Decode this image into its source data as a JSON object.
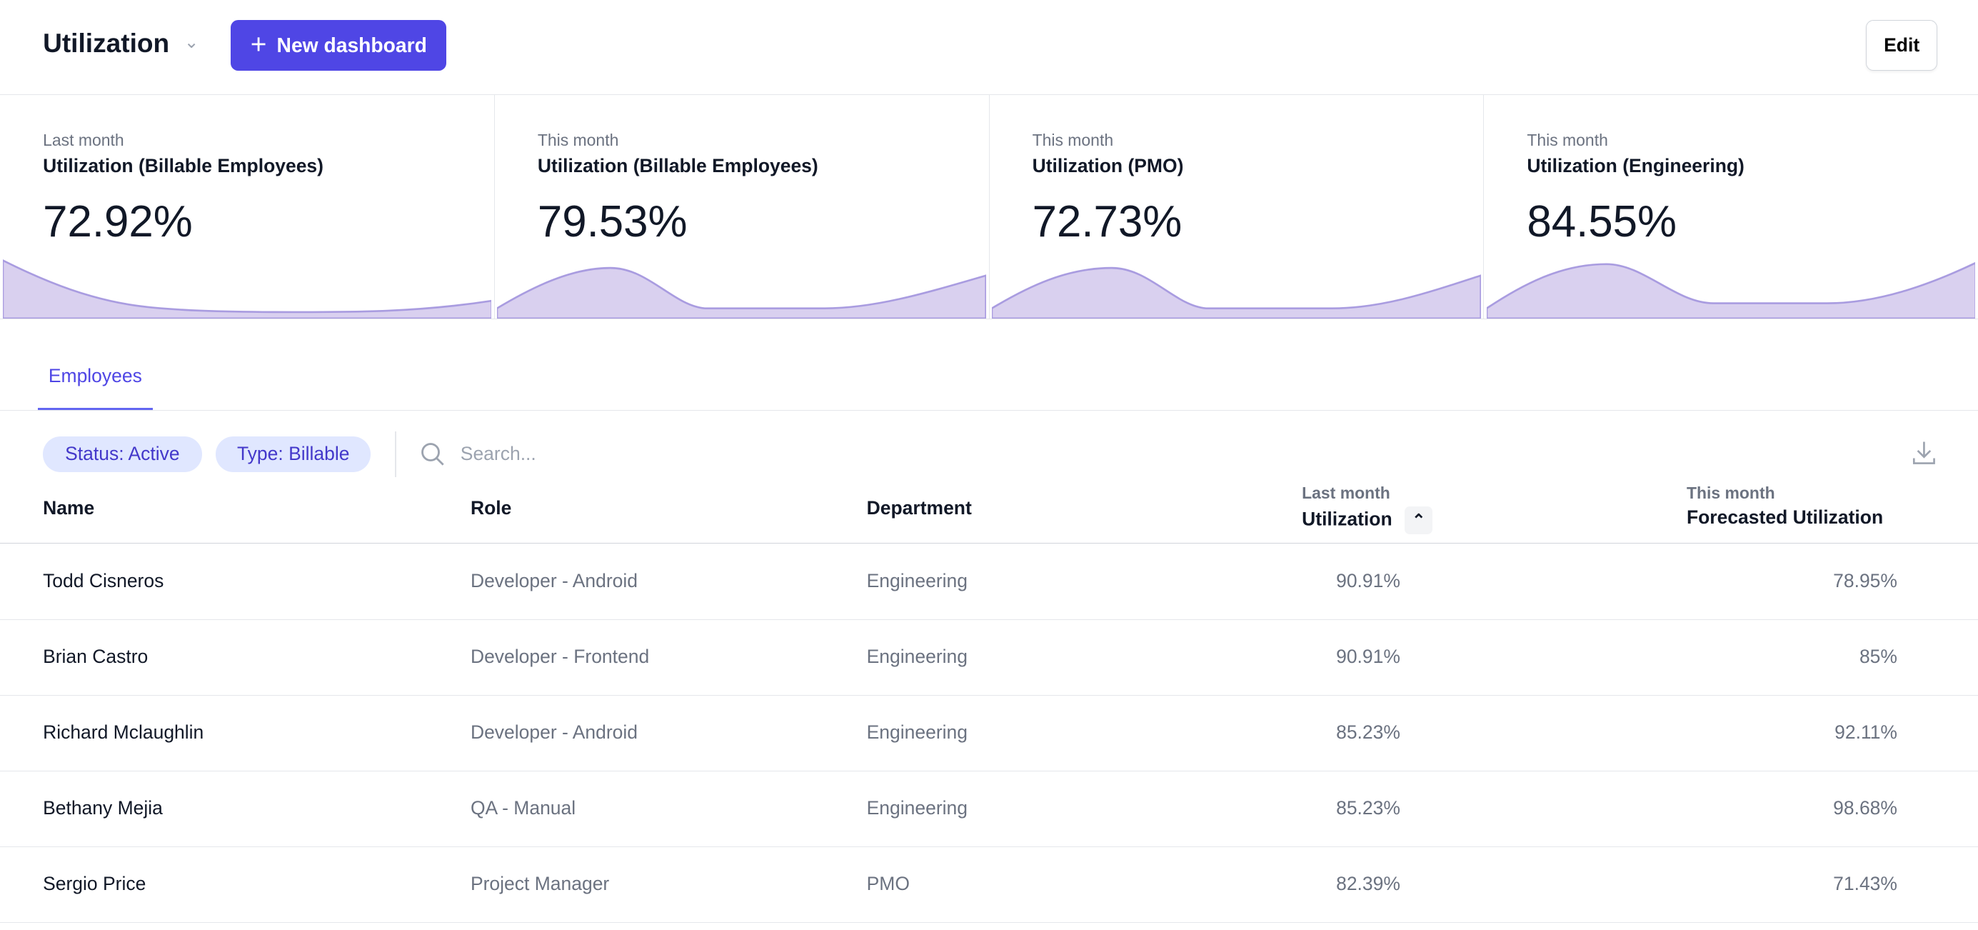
{
  "header": {
    "title": "Utilization",
    "new_dashboard": "New dashboard",
    "edit": "Edit"
  },
  "cards": [
    {
      "period": "Last month",
      "title": "Utilization (Billable Employees)",
      "value": "72.92%"
    },
    {
      "period": "This month",
      "title": "Utilization (Billable Employees)",
      "value": "79.53%"
    },
    {
      "period": "This month",
      "title": "Utilization (PMO)",
      "value": "72.73%"
    },
    {
      "period": "This month",
      "title": "Utilization (Engineering)",
      "value": "84.55%"
    }
  ],
  "tabs": [
    "Employees"
  ],
  "filters": {
    "chips": [
      "Status: Active",
      "Type: Billable"
    ],
    "search_placeholder": "Search..."
  },
  "table": {
    "columns": {
      "name": "Name",
      "role": "Role",
      "department": "Department",
      "last_sub": "Last month",
      "last": "Utilization",
      "this_sub": "This month",
      "forecast": "Forecasted Utilization"
    },
    "rows": [
      {
        "name": "Todd Cisneros",
        "role": "Developer - Android",
        "department": "Engineering",
        "last": "90.91%",
        "forecast": "78.95%"
      },
      {
        "name": "Brian Castro",
        "role": "Developer - Frontend",
        "department": "Engineering",
        "last": "90.91%",
        "forecast": "85%"
      },
      {
        "name": "Richard Mclaughlin",
        "role": "Developer - Android",
        "department": "Engineering",
        "last": "85.23%",
        "forecast": "92.11%"
      },
      {
        "name": "Bethany Mejia",
        "role": "QA - Manual",
        "department": "Engineering",
        "last": "85.23%",
        "forecast": "98.68%"
      },
      {
        "name": "Sergio Price",
        "role": "Project Manager",
        "department": "PMO",
        "last": "82.39%",
        "forecast": "71.43%"
      }
    ]
  },
  "colors": {
    "accent": "#4f46e5",
    "chip_bg": "#e0e7ff",
    "spark_fill": "#d9d0ef",
    "spark_line": "#a99ce0"
  }
}
